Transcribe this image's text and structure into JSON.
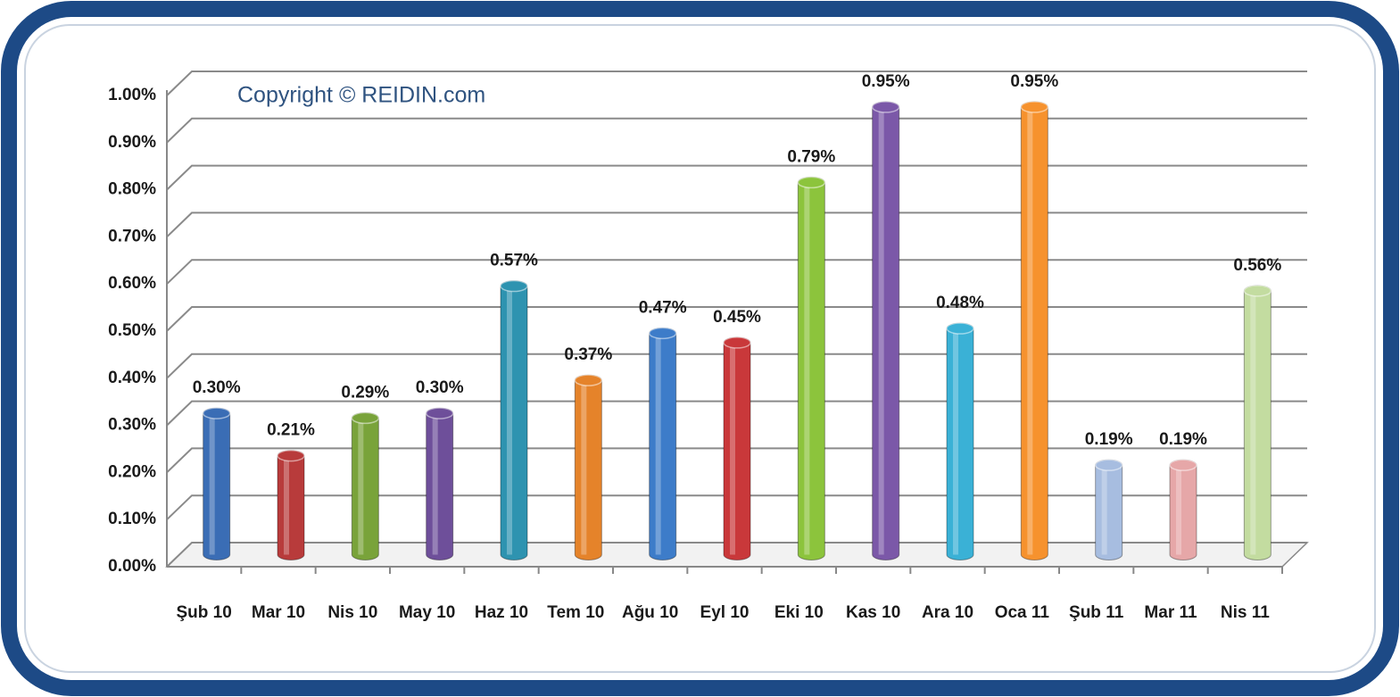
{
  "chart_data": {
    "type": "bar",
    "annotation": "Copyright © REIDIN.com",
    "categories": [
      "Şub 10",
      "Mar 10",
      "Nis 10",
      "May 10",
      "Haz 10",
      "Tem 10",
      "Ağu 10",
      "Eyl 10",
      "Eki 10",
      "Kas 10",
      "Ara 10",
      "Oca 11",
      "Şub 11",
      "Mar 11",
      "Nis 11"
    ],
    "values": [
      0.3,
      0.21,
      0.29,
      0.3,
      0.57,
      0.37,
      0.47,
      0.45,
      0.79,
      0.95,
      0.48,
      0.95,
      0.19,
      0.19,
      0.56
    ],
    "value_labels": [
      "0.30%",
      "0.21%",
      "0.29%",
      "0.30%",
      "0.57%",
      "0.37%",
      "0.47%",
      "0.45%",
      "0.79%",
      "0.95%",
      "0.48%",
      "0.95%",
      "0.19%",
      "0.19%",
      "0.56%"
    ],
    "colors": [
      "#3a6db5",
      "#b83b3b",
      "#79a33a",
      "#6e4f9a",
      "#2e93b0",
      "#e5832a",
      "#3d7cc9",
      "#c9383a",
      "#8cc43c",
      "#7b58a8",
      "#3ab1d6",
      "#f6922e",
      "#a7bde0",
      "#e6a7a8",
      "#c3dca0"
    ],
    "ylim": [
      0,
      1
    ],
    "yticks": [
      {
        "value": 0,
        "label": "0.00%"
      },
      {
        "value": 0.1,
        "label": "0.10%"
      },
      {
        "value": 0.2,
        "label": "0.20%"
      },
      {
        "value": 0.3,
        "label": "0.30%"
      },
      {
        "value": 0.4,
        "label": "0.40%"
      },
      {
        "value": 0.5,
        "label": "0.50%"
      },
      {
        "value": 0.6,
        "label": "0.60%"
      },
      {
        "value": 0.7,
        "label": "0.70%"
      },
      {
        "value": 0.8,
        "label": "0.80%"
      },
      {
        "value": 0.9,
        "label": "0.90%"
      },
      {
        "value": 1,
        "label": "1.00%"
      }
    ],
    "grid": true
  }
}
